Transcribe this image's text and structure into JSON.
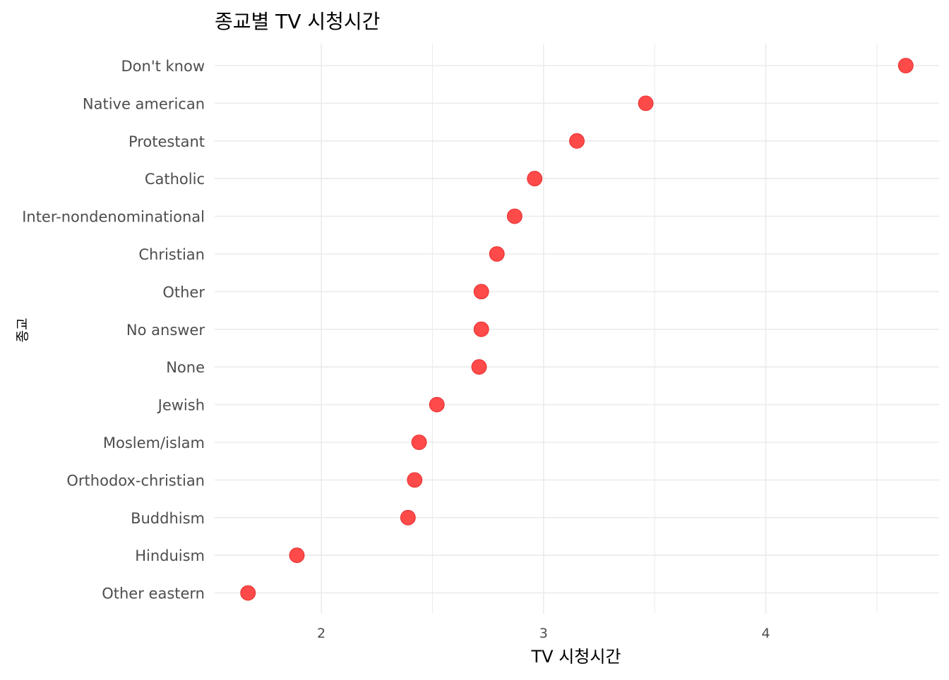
{
  "chart_data": {
    "type": "scatter",
    "title": "종교별 TV 시청시간",
    "xlabel": "TV 시청시간",
    "ylabel": "종교",
    "categories": [
      "Don't know",
      "Native american",
      "Protestant",
      "Catholic",
      "Inter-nondenominational",
      "Christian",
      "Other",
      "No answer",
      "None",
      "Jewish",
      "Moslem/islam",
      "Orthodox-christian",
      "Buddhism",
      "Hinduism",
      "Other eastern"
    ],
    "series": [
      {
        "values": [
          4.63,
          3.46,
          3.15,
          2.96,
          2.87,
          2.79,
          2.72,
          2.72,
          2.71,
          2.52,
          2.44,
          2.42,
          2.39,
          1.89,
          1.67
        ]
      }
    ],
    "xlim": [
      1.52,
      4.78
    ],
    "x_ticks": [
      2,
      3,
      4
    ],
    "grid": true,
    "point_color": "#ff3b3b",
    "grid_color": "#ebebeb"
  }
}
